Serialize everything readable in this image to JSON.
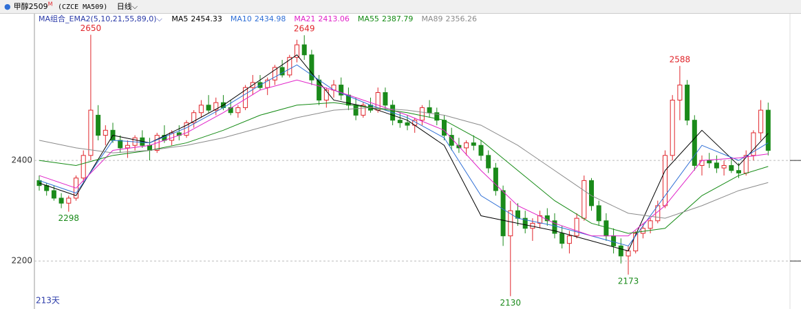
{
  "chart_data": {
    "type": "candlestick",
    "title": "甲醇2509",
    "title_sup": "M",
    "code": "(CZCE MA509)",
    "period": "日线",
    "indicator": "MA组合_EMA2(5,10,21,55,89,0)",
    "days_label": "213天",
    "up_color": "#e0242a",
    "down_color": "#1a8a1a",
    "ylim": [
      2110,
      2689
    ],
    "yticks": [
      2200,
      2400
    ],
    "grid": true,
    "ohlc": [
      [
        2360,
        2370,
        2340,
        2350
      ],
      [
        2350,
        2355,
        2330,
        2340
      ],
      [
        2340,
        2350,
        2320,
        2325
      ],
      [
        2325,
        2335,
        2305,
        2315
      ],
      [
        2315,
        2330,
        2298,
        2325
      ],
      [
        2325,
        2370,
        2320,
        2365
      ],
      [
        2365,
        2420,
        2355,
        2410
      ],
      [
        2410,
        2650,
        2400,
        2500
      ],
      [
        2490,
        2510,
        2440,
        2450
      ],
      [
        2450,
        2470,
        2430,
        2460
      ],
      [
        2460,
        2475,
        2435,
        2440
      ],
      [
        2440,
        2450,
        2415,
        2425
      ],
      [
        2425,
        2440,
        2405,
        2430
      ],
      [
        2430,
        2450,
        2420,
        2445
      ],
      [
        2445,
        2460,
        2425,
        2430
      ],
      [
        2430,
        2445,
        2400,
        2420
      ],
      [
        2420,
        2455,
        2415,
        2450
      ],
      [
        2450,
        2470,
        2435,
        2440
      ],
      [
        2440,
        2460,
        2430,
        2455
      ],
      [
        2455,
        2470,
        2440,
        2450
      ],
      [
        2450,
        2480,
        2445,
        2475
      ],
      [
        2475,
        2500,
        2465,
        2495
      ],
      [
        2495,
        2520,
        2485,
        2510
      ],
      [
        2510,
        2530,
        2495,
        2500
      ],
      [
        2500,
        2525,
        2490,
        2515
      ],
      [
        2515,
        2530,
        2500,
        2505
      ],
      [
        2505,
        2520,
        2490,
        2495
      ],
      [
        2495,
        2510,
        2485,
        2505
      ],
      [
        2505,
        2550,
        2500,
        2545
      ],
      [
        2545,
        2570,
        2530,
        2555
      ],
      [
        2555,
        2570,
        2540,
        2545
      ],
      [
        2545,
        2565,
        2530,
        2560
      ],
      [
        2560,
        2590,
        2550,
        2585
      ],
      [
        2585,
        2600,
        2565,
        2570
      ],
      [
        2570,
        2610,
        2565,
        2605
      ],
      [
        2605,
        2640,
        2595,
        2630
      ],
      [
        2630,
        2649,
        2600,
        2610
      ],
      [
        2610,
        2620,
        2550,
        2560
      ],
      [
        2560,
        2570,
        2510,
        2520
      ],
      [
        2520,
        2545,
        2505,
        2540
      ],
      [
        2540,
        2560,
        2525,
        2550
      ],
      [
        2550,
        2565,
        2520,
        2530
      ],
      [
        2530,
        2545,
        2500,
        2510
      ],
      [
        2510,
        2525,
        2480,
        2490
      ],
      [
        2490,
        2515,
        2485,
        2510
      ],
      [
        2510,
        2525,
        2495,
        2500
      ],
      [
        2500,
        2545,
        2495,
        2535
      ],
      [
        2535,
        2545,
        2500,
        2510
      ],
      [
        2510,
        2520,
        2470,
        2480
      ],
      [
        2480,
        2495,
        2465,
        2475
      ],
      [
        2475,
        2490,
        2460,
        2470
      ],
      [
        2470,
        2485,
        2455,
        2480
      ],
      [
        2480,
        2510,
        2470,
        2505
      ],
      [
        2505,
        2520,
        2485,
        2495
      ],
      [
        2495,
        2505,
        2470,
        2480
      ],
      [
        2480,
        2490,
        2440,
        2450
      ],
      [
        2450,
        2465,
        2420,
        2430
      ],
      [
        2430,
        2445,
        2415,
        2425
      ],
      [
        2425,
        2440,
        2410,
        2435
      ],
      [
        2435,
        2450,
        2420,
        2430
      ],
      [
        2430,
        2440,
        2400,
        2410
      ],
      [
        2410,
        2420,
        2375,
        2385
      ],
      [
        2385,
        2395,
        2330,
        2340
      ],
      [
        2340,
        2350,
        2230,
        2250
      ],
      [
        2250,
        2320,
        2130,
        2300
      ],
      [
        2300,
        2315,
        2270,
        2285
      ],
      [
        2285,
        2300,
        2255,
        2265
      ],
      [
        2265,
        2285,
        2240,
        2275
      ],
      [
        2275,
        2300,
        2265,
        2290
      ],
      [
        2290,
        2305,
        2270,
        2280
      ],
      [
        2280,
        2295,
        2245,
        2255
      ],
      [
        2255,
        2270,
        2225,
        2235
      ],
      [
        2235,
        2260,
        2215,
        2250
      ],
      [
        2250,
        2295,
        2245,
        2285
      ],
      [
        2285,
        2370,
        2280,
        2360
      ],
      [
        2360,
        2365,
        2300,
        2310
      ],
      [
        2310,
        2320,
        2270,
        2280
      ],
      [
        2280,
        2295,
        2240,
        2250
      ],
      [
        2250,
        2265,
        2215,
        2230
      ],
      [
        2230,
        2245,
        2195,
        2210
      ],
      [
        2210,
        2230,
        2173,
        2220
      ],
      [
        2220,
        2260,
        2215,
        2255
      ],
      [
        2255,
        2275,
        2245,
        2265
      ],
      [
        2265,
        2285,
        2255,
        2280
      ],
      [
        2280,
        2320,
        2275,
        2310
      ],
      [
        2310,
        2420,
        2305,
        2410
      ],
      [
        2410,
        2530,
        2400,
        2520
      ],
      [
        2520,
        2588,
        2480,
        2550
      ],
      [
        2550,
        2560,
        2470,
        2480
      ],
      [
        2480,
        2490,
        2380,
        2390
      ],
      [
        2390,
        2410,
        2370,
        2400
      ],
      [
        2400,
        2415,
        2385,
        2395
      ],
      [
        2395,
        2410,
        2375,
        2385
      ],
      [
        2385,
        2400,
        2370,
        2390
      ],
      [
        2390,
        2405,
        2375,
        2380
      ],
      [
        2380,
        2395,
        2365,
        2375
      ],
      [
        2375,
        2420,
        2370,
        2410
      ],
      [
        2410,
        2460,
        2400,
        2455
      ],
      [
        2455,
        2520,
        2440,
        2500
      ],
      [
        2500,
        2515,
        2410,
        2420
      ]
    ],
    "x": [
      0,
      5,
      10,
      15,
      20,
      25,
      30,
      35,
      40,
      45,
      50,
      55,
      60,
      65,
      70,
      75,
      80,
      85,
      90,
      95,
      99
    ],
    "series": [
      {
        "name": "MA5",
        "latest": 2454.33,
        "color": "#000000",
        "values": [
          2355,
          2330,
          2450,
          2435,
          2470,
          2510,
          2560,
          2610,
          2520,
          2505,
          2480,
          2430,
          2290,
          2275,
          2260,
          2240,
          2220,
          2380,
          2460,
          2390,
          2454
        ]
      },
      {
        "name": "MA10",
        "latest": 2434.98,
        "color": "#2f6fd6",
        "values": [
          2360,
          2335,
          2440,
          2435,
          2465,
          2505,
          2550,
          2590,
          2540,
          2510,
          2485,
          2445,
          2330,
          2285,
          2270,
          2250,
          2230,
          2330,
          2430,
          2400,
          2435
        ]
      },
      {
        "name": "MA21",
        "latest": 2413.06,
        "color": "#e020c8",
        "values": [
          2370,
          2345,
          2420,
          2430,
          2455,
          2495,
          2540,
          2560,
          2540,
          2515,
          2490,
          2460,
          2380,
          2310,
          2275,
          2250,
          2250,
          2310,
          2400,
          2405,
          2413
        ]
      },
      {
        "name": "MA55",
        "latest": 2387.79,
        "color": "#138a13",
        "values": [
          2400,
          2390,
          2410,
          2420,
          2435,
          2460,
          2490,
          2510,
          2515,
          2505,
          2495,
          2480,
          2440,
          2380,
          2320,
          2275,
          2255,
          2265,
          2330,
          2370,
          2388
        ]
      },
      {
        "name": "MA89",
        "latest": 2356.26,
        "color": "#8a8a8a",
        "values": [
          2440,
          2425,
          2415,
          2420,
          2430,
          2445,
          2465,
          2485,
          2500,
          2505,
          2500,
          2490,
          2470,
          2430,
          2380,
          2330,
          2295,
          2285,
          2310,
          2340,
          2356
        ]
      }
    ],
    "high_labels": [
      {
        "x": 7,
        "value": 2650
      },
      {
        "x": 36,
        "value": 2649
      },
      {
        "x": 87,
        "value": 2588
      }
    ],
    "low_labels": [
      {
        "x": 4,
        "value": 2298
      },
      {
        "x": 64,
        "value": 2130
      },
      {
        "x": 80,
        "value": 2173
      }
    ]
  }
}
